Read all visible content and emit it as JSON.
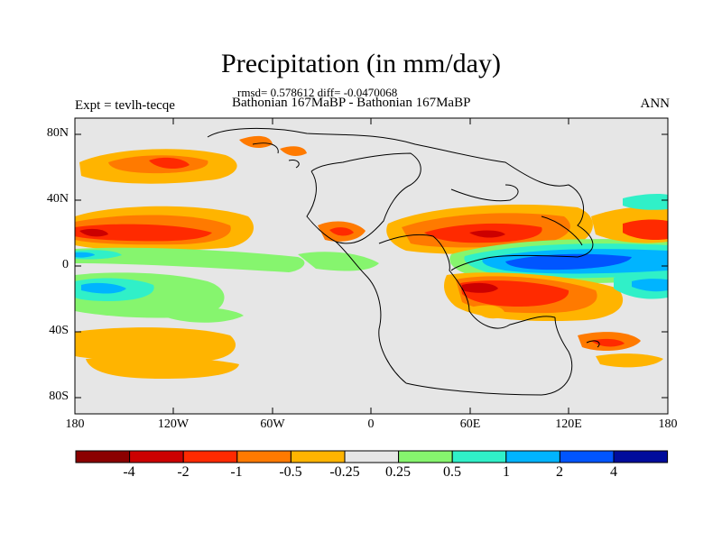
{
  "title": "Precipitation (in mm/day)",
  "stats": "rmsd= 0.578612 diff= -0.0470068",
  "subtitle": "Bathonian 167MaBP - Bathonian 167MaBP",
  "left_string": "Expt = tevlh-tecqe",
  "right_string": "ANN",
  "lat_labels": [
    "80N",
    "40N",
    "0",
    "40S",
    "80S"
  ],
  "lon_labels": [
    "180",
    "120W",
    "60W",
    "0",
    "60E",
    "120E",
    "180"
  ],
  "colorbar": {
    "labels": [
      "-4",
      "-2",
      "-1",
      "-0.5",
      "-0.25",
      "0.25",
      "0.5",
      "1",
      "2",
      "4"
    ],
    "colors": [
      "#8b0000",
      "#cc0000",
      "#ff2a00",
      "#ff7a00",
      "#ffb400",
      "#e6e6e6",
      "#86f56e",
      "#30f0c8",
      "#00b4ff",
      "#0055ff",
      "#000c9c"
    ]
  },
  "map_colors": {
    "ocean_background": "#e6e6e6",
    "coastline": "#000000"
  }
}
